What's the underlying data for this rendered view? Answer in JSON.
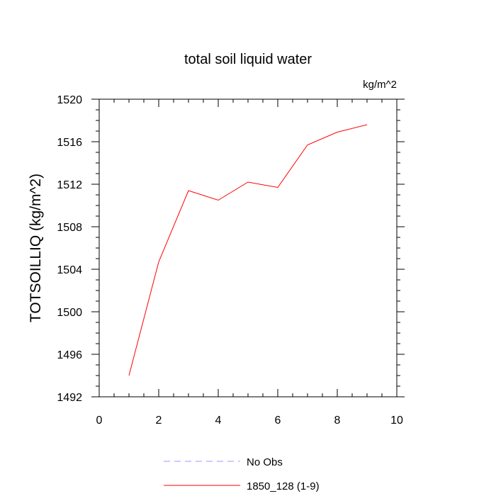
{
  "chart_data": {
    "type": "line",
    "title": "total soil liquid water",
    "units_label": "kg/m^2",
    "ylabel": "TOTSOILLIQ  (kg/m^2)",
    "xlabel": "",
    "xlim": [
      0,
      10
    ],
    "ylim": [
      1492,
      1520
    ],
    "xticks": [
      0,
      2,
      4,
      6,
      8,
      10
    ],
    "yticks": [
      1492,
      1496,
      1500,
      1504,
      1508,
      1512,
      1516,
      1520
    ],
    "grid": false,
    "legend_position": "bottom-center",
    "series": [
      {
        "name": "1850_128 (1-9)",
        "color": "#ff0000",
        "line_style": "solid",
        "x": [
          1,
          2,
          3,
          4,
          5,
          6,
          7,
          8,
          9
        ],
        "y": [
          1494.0,
          1504.7,
          1511.4,
          1510.5,
          1512.2,
          1511.7,
          1515.7,
          1516.9,
          1517.6
        ]
      }
    ],
    "legend": [
      {
        "label": "No Obs",
        "color": "#9999ff",
        "line_style": "dashed"
      },
      {
        "label": "1850_128 (1-9)",
        "color": "#ff0000",
        "line_style": "solid"
      }
    ]
  }
}
